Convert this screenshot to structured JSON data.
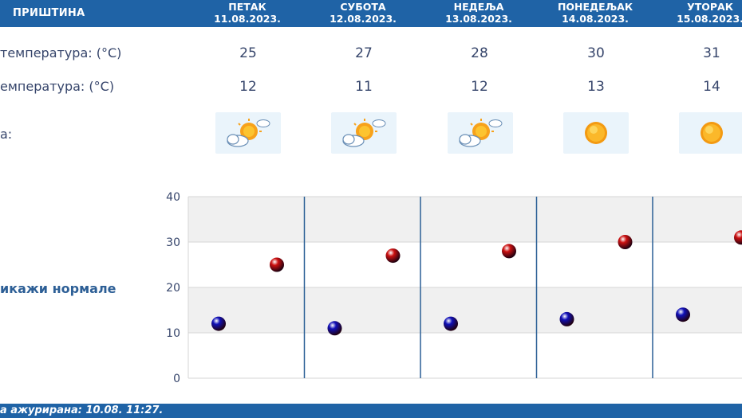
{
  "header": {
    "city": "ПРИШТИНА",
    "days": [
      {
        "name": "ПЕТАК",
        "date": "11.08.2023."
      },
      {
        "name": "СУБОТА",
        "date": "12.08.2023."
      },
      {
        "name": "НЕДЕЉА",
        "date": "13.08.2023."
      },
      {
        "name": "ПОНЕДЕЉАК",
        "date": "14.08.2023."
      },
      {
        "name": "УТОРАК",
        "date": "15.08.2023."
      }
    ]
  },
  "rows": {
    "max_label": "температура: (°C)",
    "min_label": "емпература: (°C)",
    "weather_label": "а:",
    "max": [
      "25",
      "27",
      "28",
      "30",
      "31"
    ],
    "min": [
      "12",
      "11",
      "12",
      "13",
      "14"
    ],
    "weather_icons": [
      "partly-cloudy-icon",
      "partly-cloudy-icon",
      "partly-cloudy-icon",
      "sun-icon",
      "sun-icon"
    ]
  },
  "normals_link": "икажи нормале",
  "chart_data": {
    "type": "scatter",
    "categories": [
      "11.08.2023.",
      "12.08.2023.",
      "13.08.2023.",
      "14.08.2023.",
      "15.08.2023."
    ],
    "series": [
      {
        "values": [
          12,
          11,
          12,
          13,
          14
        ],
        "color": "#1010b8"
      },
      {
        "values": [
          25,
          27,
          28,
          30,
          31
        ],
        "color": "#cc1010"
      }
    ],
    "ylim": [
      0,
      40
    ],
    "yticks": [
      "0",
      "10",
      "20",
      "30",
      "40"
    ],
    "grid": true
  },
  "footer": {
    "updated": "а ажурирана:  10.08.  11:27."
  }
}
